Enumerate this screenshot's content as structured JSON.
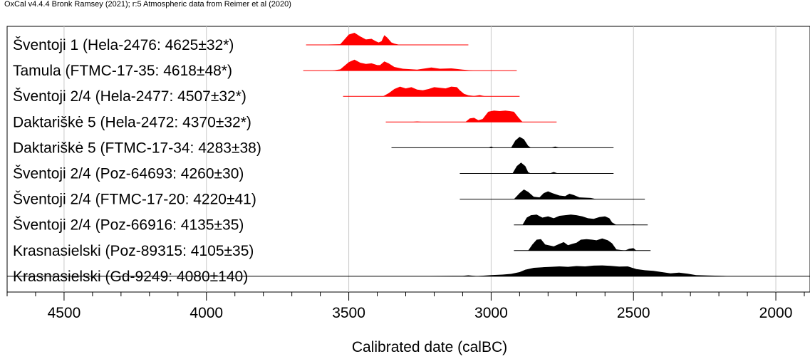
{
  "header": "OxCal v4.4.4 Bronk Ramsey (2021); r:5 Atmospheric data from Reimer et al (2020)",
  "chart_data": {
    "type": "area",
    "subtype": "calibrated radiocarbon probability distributions (OxCal multiplot)",
    "title": "",
    "xlabel": "Calibrated date (calBC)",
    "ylabel": "",
    "xlim": [
      4700,
      1880
    ],
    "x_direction": "reversed (older BC on left)",
    "xticks": [
      4500,
      4000,
      3500,
      3000,
      2500,
      2000
    ],
    "grid": "vertical lines at major ticks",
    "colors": {
      "highlight": "#ff0000",
      "default": "#000000",
      "grid": "#c8c8c8"
    },
    "series": [
      {
        "name": "Šventoji 1 (Hela-2476: 4625±32*)",
        "color": "#ff0000",
        "range": [
          3650,
          3080
        ],
        "peaks": [
          [
            3630,
            0
          ],
          [
            3530,
            0.05
          ],
          [
            3500,
            0.85
          ],
          [
            3480,
            1.0
          ],
          [
            3460,
            0.7
          ],
          [
            3440,
            0.45
          ],
          [
            3420,
            0.5
          ],
          [
            3405,
            0.3
          ],
          [
            3395,
            0.2
          ],
          [
            3385,
            0.3
          ],
          [
            3375,
            0.8
          ],
          [
            3365,
            0.6
          ],
          [
            3350,
            0.2
          ],
          [
            3340,
            0.1
          ],
          [
            3320,
            0
          ]
        ]
      },
      {
        "name": "Tamula (FTMC-17-35: 4618±48*)",
        "color": "#ff0000",
        "range": [
          3660,
          2910
        ],
        "peaks": [
          [
            3560,
            0
          ],
          [
            3530,
            0.1
          ],
          [
            3500,
            0.7
          ],
          [
            3480,
            0.9
          ],
          [
            3460,
            0.65
          ],
          [
            3440,
            0.55
          ],
          [
            3420,
            0.6
          ],
          [
            3400,
            0.45
          ],
          [
            3390,
            0.45
          ],
          [
            3375,
            0.75
          ],
          [
            3360,
            0.6
          ],
          [
            3340,
            0.3
          ],
          [
            3310,
            0.15
          ],
          [
            3260,
            0.08
          ],
          [
            3210,
            0.25
          ],
          [
            3180,
            0.15
          ],
          [
            3140,
            0.18
          ],
          [
            3100,
            0.08
          ],
          [
            3060,
            0
          ]
        ]
      },
      {
        "name": "Šventoji 2/4 (Hela-2477: 4507±32*)",
        "color": "#ff0000",
        "range": [
          3520,
          2900
        ],
        "peaks": [
          [
            3380,
            0
          ],
          [
            3360,
            0.25
          ],
          [
            3340,
            0.6
          ],
          [
            3320,
            0.8
          ],
          [
            3300,
            0.65
          ],
          [
            3280,
            0.75
          ],
          [
            3260,
            0.55
          ],
          [
            3240,
            0.5
          ],
          [
            3220,
            0.6
          ],
          [
            3200,
            0.75
          ],
          [
            3180,
            0.7
          ],
          [
            3160,
            0.65
          ],
          [
            3140,
            0.8
          ],
          [
            3120,
            0.75
          ],
          [
            3110,
            0.5
          ],
          [
            3095,
            0.2
          ],
          [
            3080,
            0.08
          ],
          [
            3060,
            0.03
          ],
          [
            3040,
            0.1
          ],
          [
            3020,
            0
          ]
        ]
      },
      {
        "name": "Daktariškė 5 (Hela-2472: 4370±32*)",
        "color": "#ff0000",
        "range": [
          3370,
          2770
        ],
        "peaks": [
          [
            3280,
            0
          ],
          [
            3260,
            0.05
          ],
          [
            3240,
            0
          ],
          [
            3090,
            0
          ],
          [
            3075,
            0.3
          ],
          [
            3060,
            0.35
          ],
          [
            3045,
            0.15
          ],
          [
            3030,
            0.25
          ],
          [
            3010,
            0.85
          ],
          [
            2990,
            0.95
          ],
          [
            2970,
            0.9
          ],
          [
            2950,
            0.95
          ],
          [
            2935,
            0.9
          ],
          [
            2920,
            0.85
          ],
          [
            2905,
            0.4
          ],
          [
            2890,
            0
          ]
        ]
      },
      {
        "name": "Daktariškė 5 (FTMC-17-34: 4283±38)",
        "color": "#000000",
        "range": [
          3350,
          2570
        ],
        "peaks": [
          [
            3010,
            0
          ],
          [
            3000,
            0.1
          ],
          [
            2990,
            0
          ],
          [
            2930,
            0
          ],
          [
            2915,
            0.6
          ],
          [
            2900,
            0.9
          ],
          [
            2885,
            0.7
          ],
          [
            2870,
            0.15
          ],
          [
            2860,
            0
          ],
          [
            2790,
            0
          ],
          [
            2775,
            0.1
          ],
          [
            2760,
            0
          ]
        ]
      },
      {
        "name": "Šventoji 2/4 (Poz-64693: 4260±30)",
        "color": "#000000",
        "range": [
          3110,
          2570
        ],
        "peaks": [
          [
            2925,
            0
          ],
          [
            2910,
            0.6
          ],
          [
            2895,
            0.9
          ],
          [
            2880,
            0.6
          ],
          [
            2870,
            0.1
          ],
          [
            2860,
            0
          ],
          [
            2795,
            0
          ],
          [
            2780,
            0.12
          ],
          [
            2765,
            0
          ]
        ]
      },
      {
        "name": "Šventoji 2/4 (FTMC-17-20: 4220±41)",
        "color": "#000000",
        "range": [
          3110,
          2460
        ],
        "peaks": [
          [
            2920,
            0
          ],
          [
            2900,
            0.5
          ],
          [
            2885,
            0.8
          ],
          [
            2870,
            0.6
          ],
          [
            2850,
            0.2
          ],
          [
            2830,
            0.15
          ],
          [
            2815,
            0.5
          ],
          [
            2800,
            0.65
          ],
          [
            2785,
            0.5
          ],
          [
            2760,
            0.3
          ],
          [
            2740,
            0.25
          ],
          [
            2725,
            0.45
          ],
          [
            2710,
            0.35
          ],
          [
            2690,
            0.15
          ],
          [
            2650,
            0.1
          ],
          [
            2630,
            0
          ]
        ]
      },
      {
        "name": "Šventoji 2/4 (Poz-66916: 4135±35)",
        "color": "#000000",
        "range": [
          2920,
          2450
        ],
        "peaks": [
          [
            2890,
            0
          ],
          [
            2875,
            0.6
          ],
          [
            2860,
            0.8
          ],
          [
            2840,
            0.85
          ],
          [
            2820,
            0.6
          ],
          [
            2800,
            0.7
          ],
          [
            2780,
            0.55
          ],
          [
            2760,
            0.75
          ],
          [
            2740,
            0.8
          ],
          [
            2720,
            0.85
          ],
          [
            2700,
            0.8
          ],
          [
            2680,
            0.7
          ],
          [
            2660,
            0.55
          ],
          [
            2640,
            0.5
          ],
          [
            2620,
            0.65
          ],
          [
            2600,
            0.7
          ],
          [
            2585,
            0.55
          ],
          [
            2575,
            0.2
          ],
          [
            2560,
            0
          ],
          [
            2510,
            0
          ],
          [
            2500,
            0.05
          ],
          [
            2490,
            0
          ]
        ]
      },
      {
        "name": "Krasnasielski (Poz-89315: 4105±35)",
        "color": "#000000",
        "range": [
          2920,
          2440
        ],
        "peaks": [
          [
            2870,
            0
          ],
          [
            2855,
            0.5
          ],
          [
            2840,
            0.9
          ],
          [
            2825,
            0.95
          ],
          [
            2810,
            0.5
          ],
          [
            2780,
            0.35
          ],
          [
            2760,
            0.55
          ],
          [
            2745,
            0.7
          ],
          [
            2730,
            0.45
          ],
          [
            2715,
            0.55
          ],
          [
            2700,
            0.65
          ],
          [
            2685,
            0.9
          ],
          [
            2665,
            0.95
          ],
          [
            2645,
            0.9
          ],
          [
            2630,
            0.85
          ],
          [
            2610,
            1.0
          ],
          [
            2590,
            0.85
          ],
          [
            2575,
            0.6
          ],
          [
            2560,
            0.1
          ],
          [
            2530,
            0
          ],
          [
            2515,
            0.15
          ],
          [
            2500,
            0.2
          ],
          [
            2490,
            0
          ]
        ]
      },
      {
        "name": "Krasnasielski (Gd-9249: 4080±140)",
        "color": "#000000",
        "range": [
          4700,
          1880
        ],
        "peaks": [
          [
            3300,
            0
          ],
          [
            3260,
            0.02
          ],
          [
            3100,
            0.04
          ],
          [
            3080,
            0.08
          ],
          [
            3050,
            0.02
          ],
          [
            3000,
            0.1
          ],
          [
            2960,
            0.14
          ],
          [
            2930,
            0.2
          ],
          [
            2900,
            0.35
          ],
          [
            2880,
            0.55
          ],
          [
            2850,
            0.7
          ],
          [
            2820,
            0.75
          ],
          [
            2790,
            0.78
          ],
          [
            2760,
            0.82
          ],
          [
            2730,
            0.78
          ],
          [
            2700,
            0.85
          ],
          [
            2670,
            0.82
          ],
          [
            2640,
            0.88
          ],
          [
            2610,
            0.9
          ],
          [
            2580,
            0.86
          ],
          [
            2550,
            0.8
          ],
          [
            2520,
            0.82
          ],
          [
            2490,
            0.6
          ],
          [
            2460,
            0.5
          ],
          [
            2430,
            0.45
          ],
          [
            2400,
            0.35
          ],
          [
            2370,
            0.25
          ],
          [
            2340,
            0.3
          ],
          [
            2310,
            0.22
          ],
          [
            2280,
            0.1
          ],
          [
            2240,
            0.07
          ],
          [
            2200,
            0.05
          ],
          [
            2160,
            0.02
          ],
          [
            2120,
            0
          ]
        ]
      }
    ]
  }
}
